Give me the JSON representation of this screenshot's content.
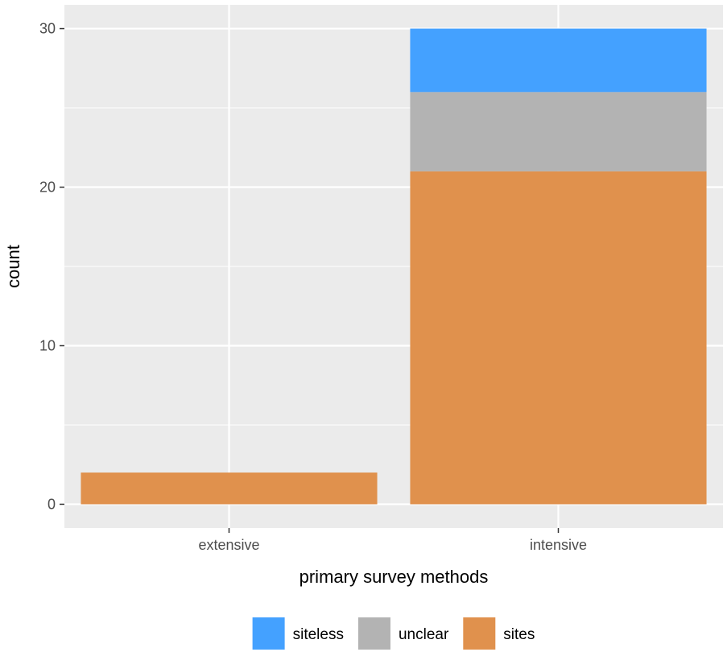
{
  "chart_data": {
    "type": "bar",
    "stacked": true,
    "title": "",
    "xlabel": "primary survey methods",
    "ylabel": "count",
    "categories": [
      "extensive",
      "intensive"
    ],
    "series": [
      {
        "name": "sites",
        "values": [
          2,
          21
        ],
        "color": "#E0914D"
      },
      {
        "name": "unclear",
        "values": [
          0,
          5
        ],
        "color": "#B3B3B3"
      },
      {
        "name": "siteless",
        "values": [
          0,
          4
        ],
        "color": "#44A1FF"
      }
    ],
    "legend_order": [
      "siteless",
      "unclear",
      "sites"
    ],
    "y_ticks": [
      0,
      10,
      20,
      30
    ],
    "ylim": [
      -1.5,
      31.5
    ],
    "grid": true,
    "legend_position": "bottom",
    "panel_background": "#EBEBEB",
    "grid_color": "#FFFFFF"
  }
}
